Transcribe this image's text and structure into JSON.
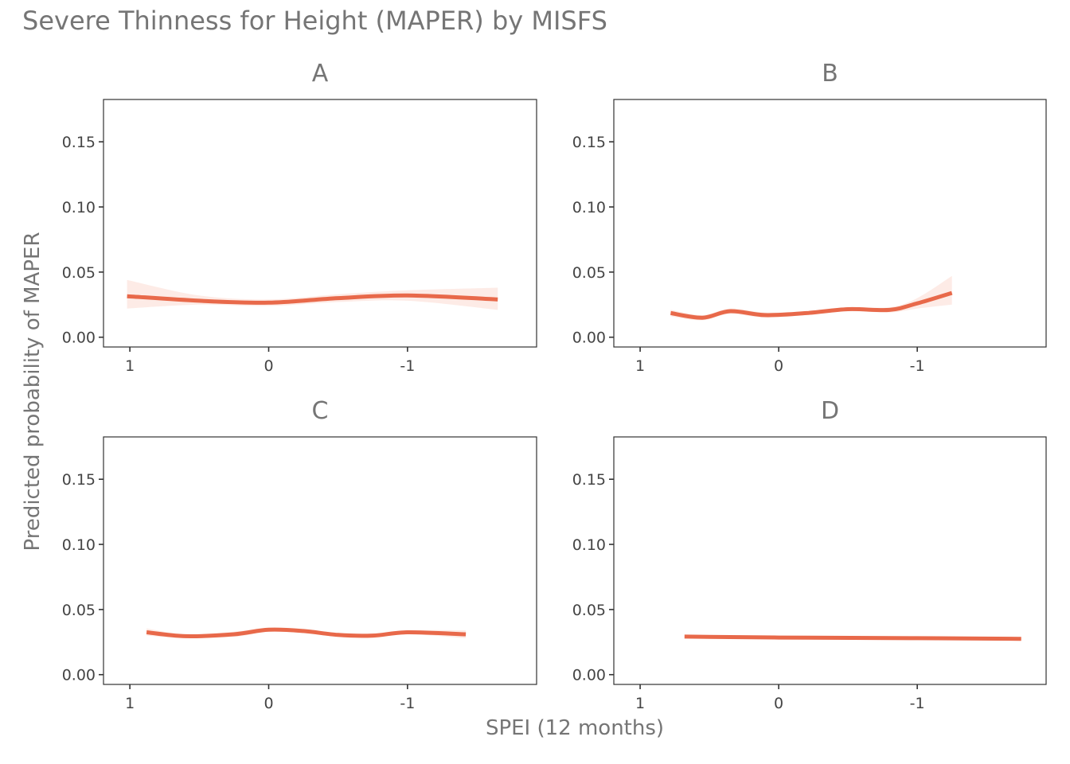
{
  "chart_data": {
    "type": "line",
    "title": "Severe Thinness for Height (MAPER) by MISFS",
    "xlabel": "SPEI (12 months)",
    "ylabel": "Predicted probability of MAPER",
    "x_reversed": true,
    "xlim": [
      1.19,
      -1.93
    ],
    "ylim": [
      -0.0075,
      0.1825
    ],
    "x_ticks": [
      1,
      0,
      -1
    ],
    "x_tick_labels": [
      "1",
      "0",
      "-1"
    ],
    "y_ticks": [
      0,
      0.05,
      0.1,
      0.15
    ],
    "y_tick_labels": [
      "0.00",
      "0.05",
      "0.10",
      "0.15"
    ],
    "grid": false,
    "legend": "none",
    "colors": {
      "line": "#e8694a",
      "ribbon": "#f4a58f"
    },
    "panels": [
      {
        "label": "A",
        "x": [
          1.02,
          0.5,
          0.0,
          -0.5,
          -1.0,
          -1.65
        ],
        "y": [
          0.0315,
          0.028,
          0.0265,
          0.03,
          0.032,
          0.029
        ],
        "lower": [
          0.022,
          0.025,
          0.024,
          0.027,
          0.028,
          0.021
        ],
        "upper": [
          0.044,
          0.032,
          0.029,
          0.033,
          0.036,
          0.038
        ]
      },
      {
        "label": "B",
        "x": [
          0.78,
          0.55,
          0.35,
          0.1,
          -0.2,
          -0.5,
          -0.8,
          -1.0,
          -1.25
        ],
        "y": [
          0.0185,
          0.015,
          0.02,
          0.017,
          0.0185,
          0.0215,
          0.021,
          0.026,
          0.034
        ],
        "lower": [
          0.016,
          0.013,
          0.018,
          0.015,
          0.017,
          0.02,
          0.019,
          0.022,
          0.025
        ],
        "upper": [
          0.021,
          0.017,
          0.022,
          0.019,
          0.02,
          0.023,
          0.023,
          0.03,
          0.047
        ]
      },
      {
        "label": "C",
        "x": [
          0.88,
          0.6,
          0.25,
          0.0,
          -0.25,
          -0.5,
          -0.75,
          -1.0,
          -1.42
        ],
        "y": [
          0.0325,
          0.0295,
          0.031,
          0.0345,
          0.0335,
          0.0305,
          0.03,
          0.0325,
          0.031
        ],
        "lower": [
          0.03,
          0.028,
          0.029,
          0.033,
          0.032,
          0.029,
          0.028,
          0.031,
          0.028
        ],
        "upper": [
          0.0355,
          0.031,
          0.033,
          0.036,
          0.035,
          0.032,
          0.0315,
          0.034,
          0.034
        ]
      },
      {
        "label": "D",
        "x": [
          0.68,
          0.0,
          -1.0,
          -1.75
        ],
        "y": [
          0.0292,
          0.0285,
          0.028,
          0.0275
        ],
        "lower": [
          0.0286,
          0.0281,
          0.0276,
          0.0269
        ],
        "upper": [
          0.0298,
          0.0289,
          0.0284,
          0.0281
        ]
      }
    ]
  }
}
